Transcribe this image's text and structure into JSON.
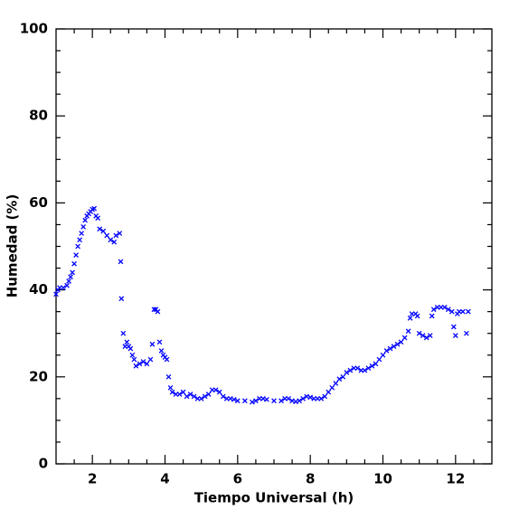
{
  "chart_data": {
    "type": "scatter",
    "x_label": "Tiempo Universal (h)",
    "y_label": "Humedad (%)",
    "xlim": [
      1,
      13
    ],
    "ylim": [
      0,
      100
    ],
    "xticks": [
      2,
      4,
      6,
      8,
      10,
      12
    ],
    "yticks": [
      0,
      20,
      40,
      60,
      80,
      100
    ],
    "xminorticks": [
      1.5,
      2.5,
      3,
      3.5,
      4.5,
      5,
      5.5,
      6.5,
      7,
      7.5,
      8.5,
      9,
      9.5,
      10.5,
      11,
      11.5,
      12.5
    ],
    "yminorticks": [
      5,
      10,
      15,
      25,
      30,
      35,
      45,
      50,
      55,
      65,
      70,
      75,
      85,
      90,
      95
    ],
    "series": [
      {
        "color": "#0000ff",
        "x": [
          1.0,
          1.05,
          1.1,
          1.2,
          1.3,
          1.35,
          1.4,
          1.45,
          1.5,
          1.55,
          1.6,
          1.65,
          1.7,
          1.75,
          1.8,
          1.85,
          1.9,
          1.95,
          2.0,
          2.05,
          2.1,
          2.15,
          2.2,
          2.3,
          2.4,
          2.5,
          2.6,
          2.65,
          2.75,
          2.78,
          2.8,
          2.85,
          2.9,
          2.95,
          3.0,
          3.05,
          3.1,
          3.15,
          3.2,
          3.3,
          3.4,
          3.5,
          3.6,
          3.65,
          3.7,
          3.75,
          3.8,
          3.85,
          3.9,
          3.95,
          4.0,
          4.05,
          4.1,
          4.15,
          4.2,
          4.3,
          4.4,
          4.5,
          4.6,
          4.7,
          4.8,
          4.9,
          5.0,
          5.1,
          5.2,
          5.3,
          5.4,
          5.5,
          5.6,
          5.7,
          5.8,
          5.9,
          6.0,
          6.2,
          6.4,
          6.5,
          6.6,
          6.7,
          6.8,
          7.0,
          7.2,
          7.3,
          7.4,
          7.5,
          7.6,
          7.7,
          7.8,
          7.9,
          8.0,
          8.1,
          8.2,
          8.3,
          8.4,
          8.5,
          8.6,
          8.7,
          8.8,
          8.9,
          9.0,
          9.1,
          9.2,
          9.3,
          9.4,
          9.5,
          9.6,
          9.7,
          9.8,
          9.9,
          10.0,
          10.1,
          10.2,
          10.3,
          10.4,
          10.5,
          10.6,
          10.7,
          10.75,
          10.8,
          10.9,
          10.95,
          11.0,
          11.1,
          11.2,
          11.3,
          11.35,
          11.4,
          11.5,
          11.6,
          11.7,
          11.8,
          11.9,
          11.95,
          12.0,
          12.05,
          12.1,
          12.2,
          12.3,
          12.35
        ],
        "values": [
          39,
          40,
          40.5,
          40.5,
          41,
          42,
          43,
          44,
          46,
          48,
          50,
          51.5,
          53,
          54.5,
          56,
          57,
          57.5,
          58,
          58.5,
          58.7,
          57,
          56.5,
          54,
          53.5,
          52.5,
          51.5,
          51,
          52.5,
          53,
          46.5,
          38,
          30,
          27,
          28,
          27,
          26.5,
          25,
          24,
          22.5,
          23,
          23.5,
          23,
          24,
          27.5,
          35.5,
          35.5,
          35,
          28,
          26,
          25,
          24.5,
          24,
          20,
          17.5,
          16.5,
          16,
          16,
          16.5,
          15.5,
          16,
          15.5,
          15,
          15,
          15.5,
          16,
          17,
          17,
          16.5,
          15.5,
          15,
          15,
          14.8,
          14.5,
          14.5,
          14.2,
          14.5,
          15,
          15,
          14.8,
          14.5,
          14.5,
          15,
          15,
          14.5,
          14.3,
          14.5,
          15,
          15.5,
          15.3,
          15,
          15,
          15,
          15.5,
          16.5,
          17.5,
          18.5,
          19.5,
          20,
          21,
          21.5,
          22,
          22,
          21.5,
          21.5,
          22,
          22.5,
          23,
          24,
          25,
          26,
          26.5,
          27,
          27.5,
          28,
          29,
          30.5,
          33.5,
          34.5,
          34.5,
          34,
          30,
          29.5,
          29,
          29.5,
          34,
          35.5,
          36,
          36,
          36,
          35.5,
          35,
          31.5,
          29.5,
          34.5,
          35,
          35,
          30,
          35
        ]
      }
    ]
  }
}
